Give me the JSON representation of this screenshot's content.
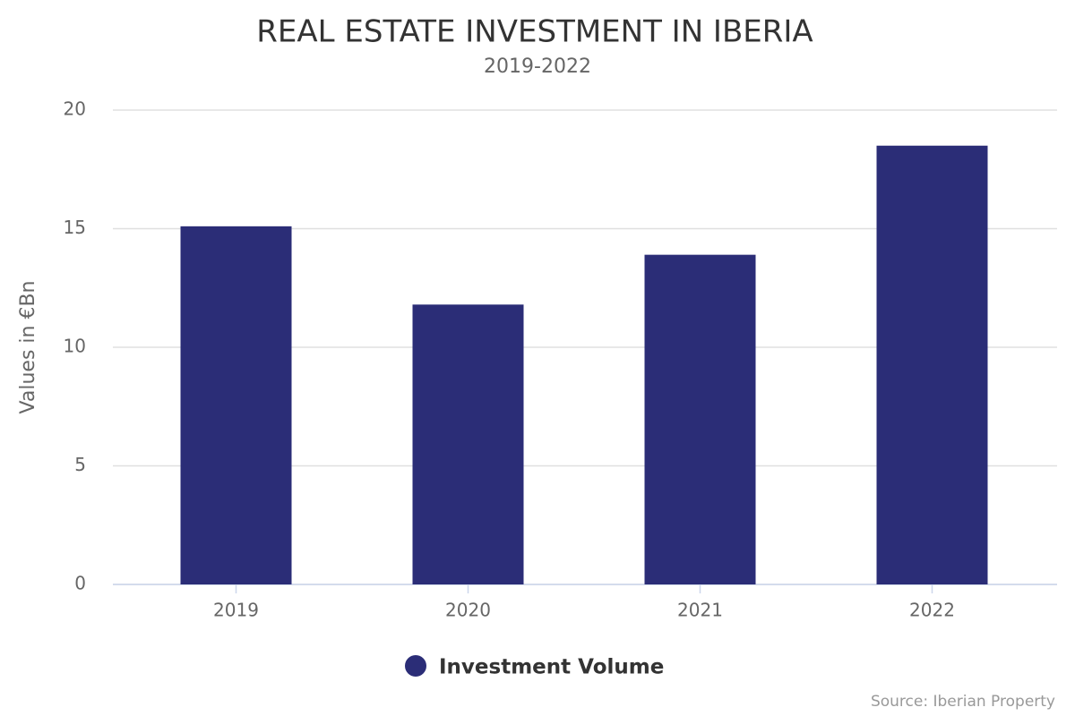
{
  "chart_data": {
    "type": "bar",
    "title": "REAL ESTATE INVESTMENT IN IBERIA",
    "subtitle": "2019-2022",
    "y_label": "Values in €Bn",
    "categories": [
      "2019",
      "2020",
      "2021",
      "2022"
    ],
    "series": [
      {
        "name": "Investment Volume",
        "color": "#2b2d77",
        "values": [
          15.1,
          11.8,
          13.9,
          18.5
        ]
      }
    ],
    "ylim": [
      0,
      20
    ],
    "yticks": [
      0,
      5,
      10,
      15,
      20
    ],
    "grid": true,
    "source": "Source: Iberian Property"
  }
}
